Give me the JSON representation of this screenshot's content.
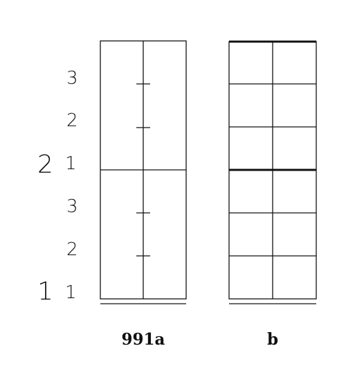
{
  "left_labels": {
    "upper_inner": [
      "3",
      "2",
      "1"
    ],
    "lower_inner": [
      "3",
      "2",
      "1"
    ],
    "outer": [
      "2",
      "1"
    ]
  },
  "captions": {
    "left": "991a",
    "right": "b"
  }
}
